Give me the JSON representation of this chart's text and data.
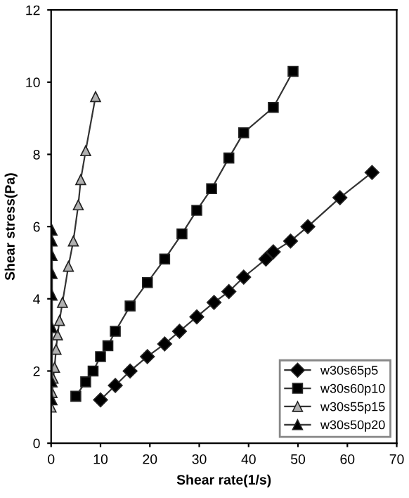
{
  "chart_data": {
    "type": "line",
    "xlabel": "Shear rate(1/s)",
    "ylabel": "Shear stress(Pa)",
    "xlim": [
      0,
      70
    ],
    "xticks": [
      0,
      10,
      20,
      30,
      40,
      50,
      60,
      70
    ],
    "ylim": [
      0,
      12
    ],
    "yticks": [
      0,
      2,
      4,
      6,
      8,
      10,
      12
    ],
    "grid": false,
    "legend": "bottom right",
    "series": [
      {
        "name": "w30s65p5",
        "color": "#000000",
        "marker": "diamond",
        "x": [
          10,
          13,
          16,
          19.5,
          23,
          26,
          29.5,
          33,
          36,
          39,
          43.5,
          45,
          48.5,
          52,
          58.5,
          65
        ],
        "values": [
          1.2,
          1.6,
          2.0,
          2.4,
          2.75,
          3.1,
          3.5,
          3.9,
          4.2,
          4.6,
          5.1,
          5.3,
          5.6,
          6.0,
          6.8,
          7.5
        ]
      },
      {
        "name": "w30s60p10",
        "color": "#000000",
        "marker": "square",
        "x": [
          5,
          7,
          8.5,
          10,
          11.5,
          13,
          16,
          19.5,
          23,
          26.5,
          29.5,
          32.5,
          36,
          39,
          45,
          49
        ],
        "values": [
          1.3,
          1.7,
          2.0,
          2.4,
          2.7,
          3.1,
          3.8,
          4.45,
          5.1,
          5.8,
          6.45,
          7.05,
          7.9,
          8.6,
          9.3,
          10.3
        ]
      },
      {
        "name": "w30s55p15",
        "color": "#b0b0b0",
        "marker": "triangle",
        "x": [
          0,
          0.2,
          0.4,
          0.7,
          1,
          1.3,
          1.7,
          2.3,
          3.5,
          4.5,
          5.5,
          6,
          7,
          9
        ],
        "values": [
          1.0,
          1.4,
          1.8,
          2.1,
          2.6,
          3.0,
          3.4,
          3.9,
          4.9,
          5.6,
          6.6,
          7.3,
          8.1,
          9.6
        ]
      },
      {
        "name": "w30s50p20",
        "color": "#000000",
        "marker": "triangle",
        "x": [
          0.2,
          0.2,
          0.2,
          0.2,
          0.2,
          0.2,
          0.2,
          0.2
        ],
        "values": [
          1.2,
          1.7,
          3.2,
          4.1,
          4.7,
          5.2,
          5.6,
          5.9
        ]
      }
    ]
  }
}
